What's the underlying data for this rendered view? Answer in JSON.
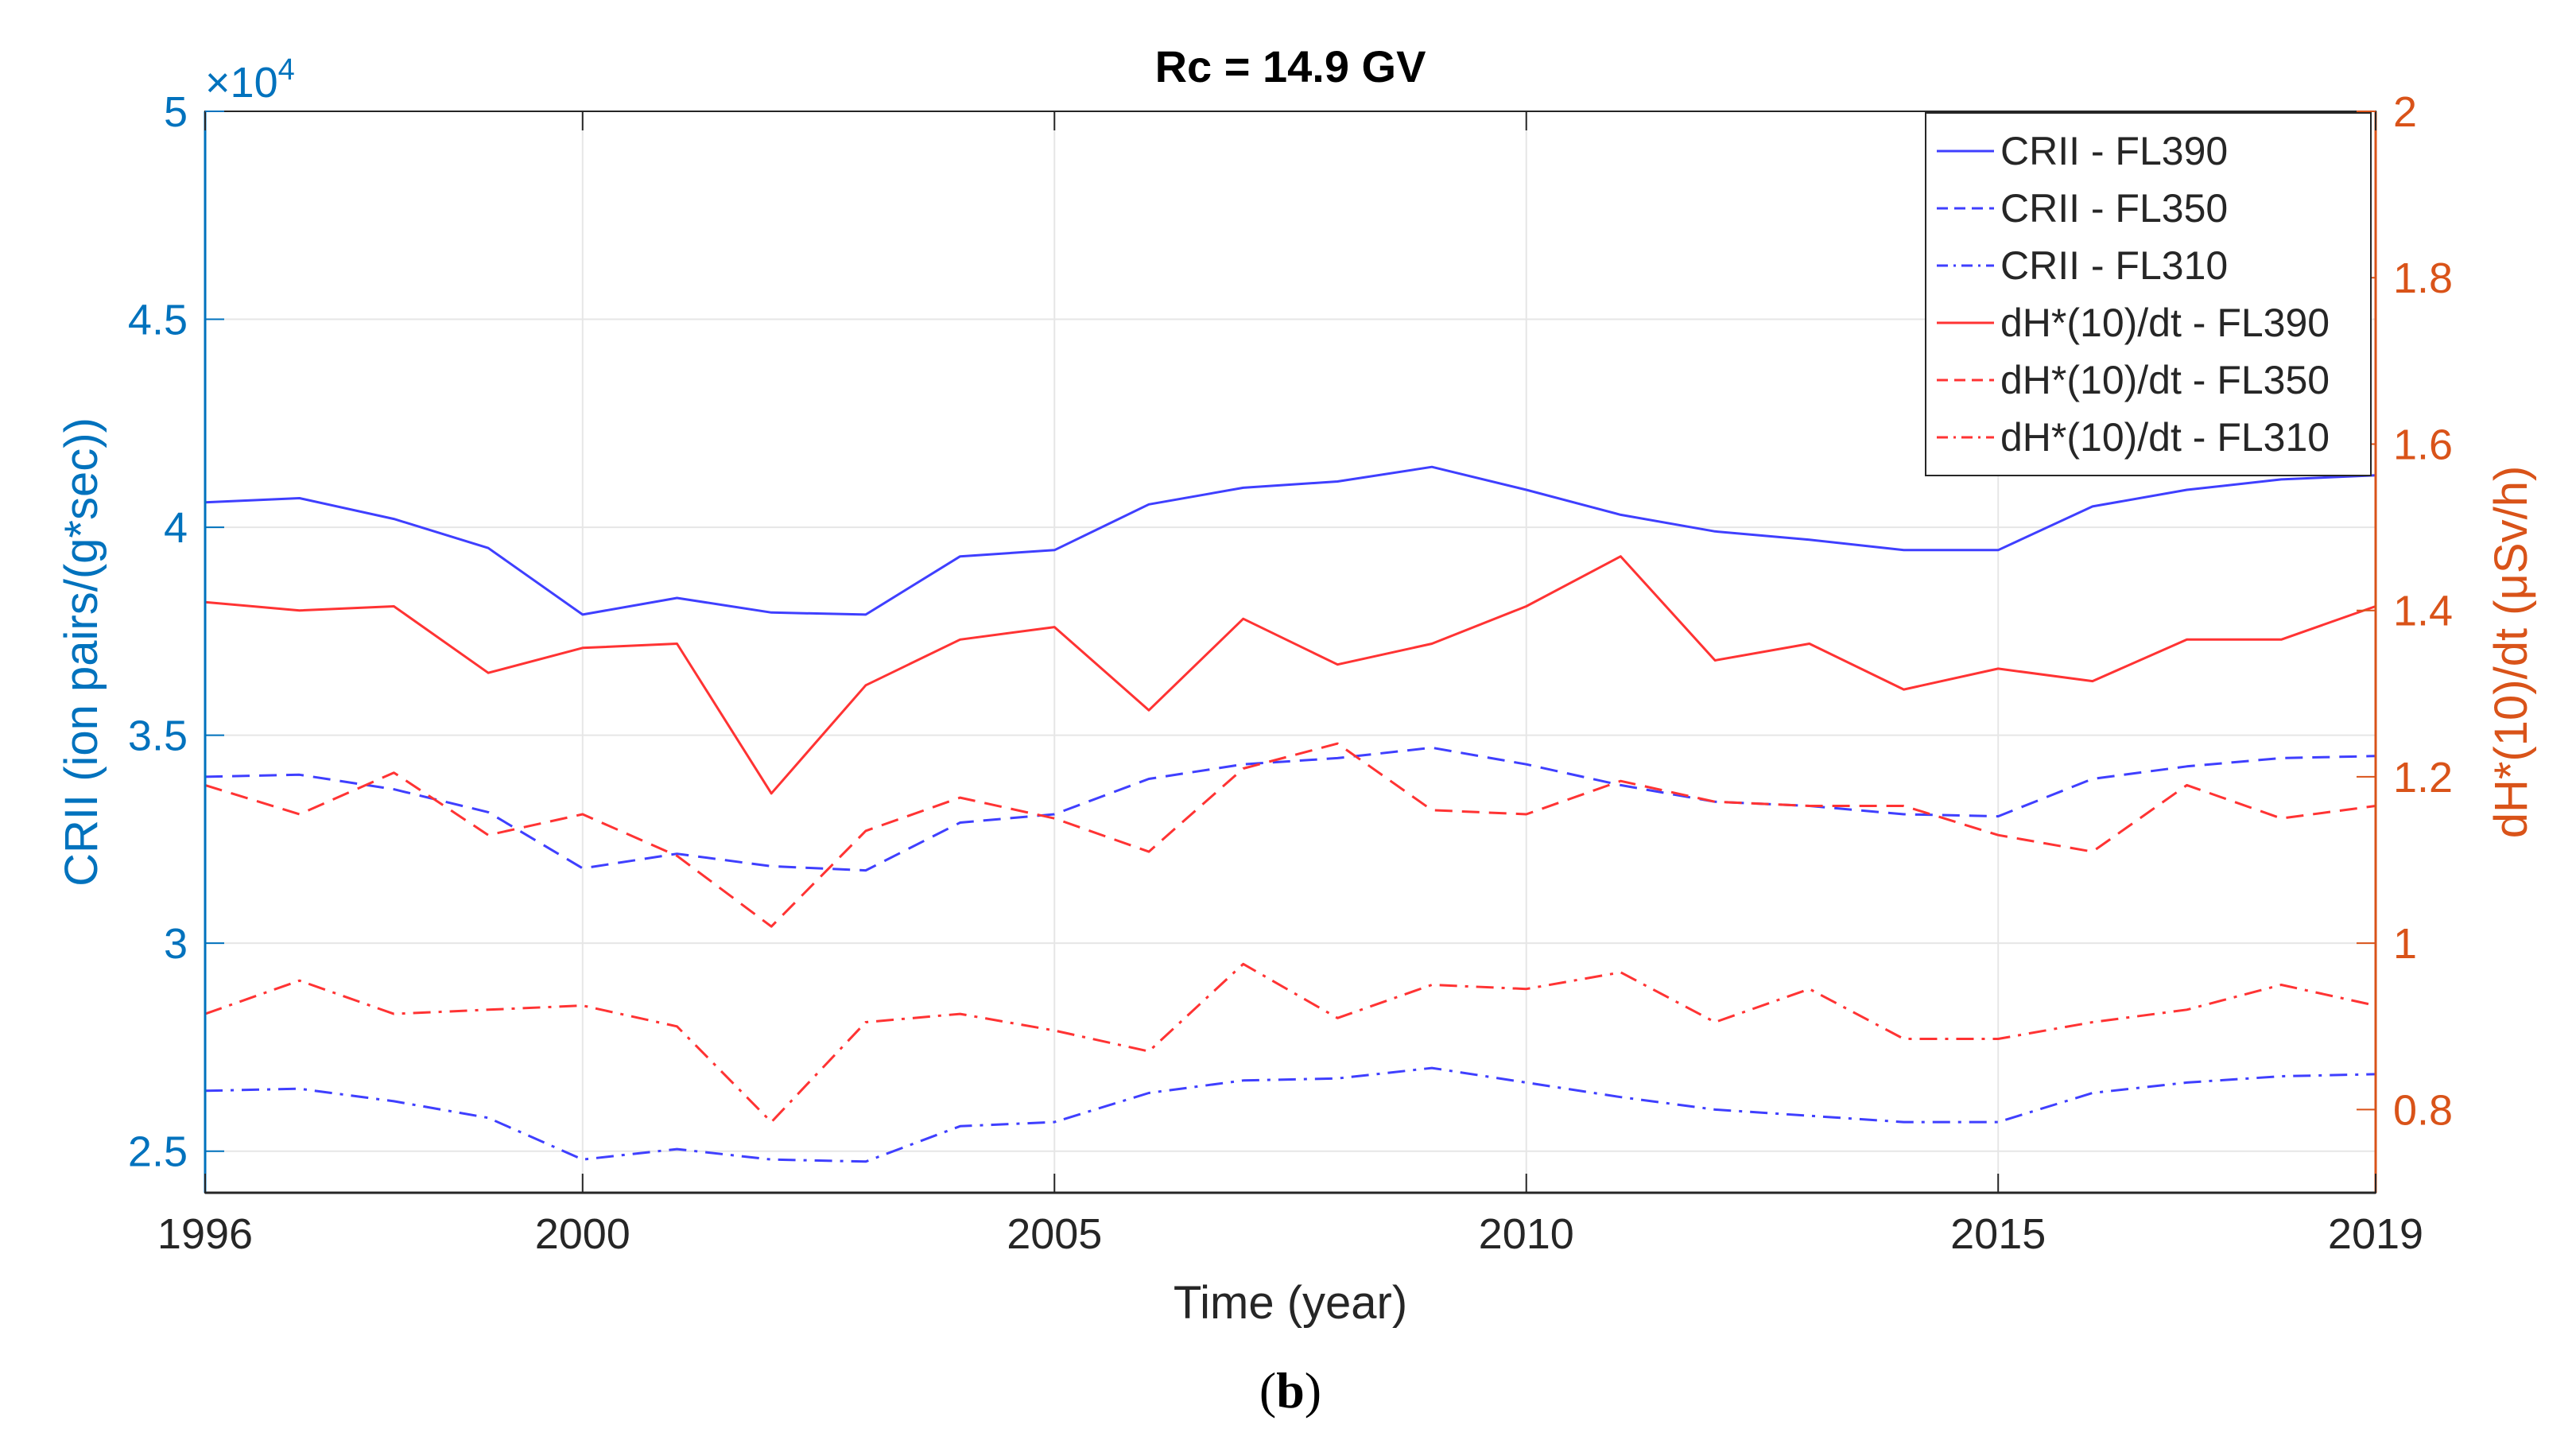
{
  "chart_data": {
    "type": "line",
    "title": "Rc = 14.9 GV",
    "xlabel": "Time (year)",
    "ylabel_left": "CRII (ion pairs/(g*sec))",
    "ylabel_right": "dH*(10)/dt (μSv/h)",
    "left_multiplier": "×10",
    "left_multiplier_exp": "4",
    "caption_open": "(",
    "caption_letter": "b",
    "caption_close": ")",
    "xlim": [
      1996,
      2019
    ],
    "ylim_left": [
      24000,
      50000
    ],
    "ylim_right": [
      0.7,
      2.0
    ],
    "grid": true,
    "legend_position": "top-right",
    "colors": {
      "left_axis": "#0072BD",
      "right_axis": "#D95319",
      "crii": "#3F3FFF",
      "dose": "#FF3333"
    },
    "x_ticks": [
      1996,
      2000,
      2005,
      2010,
      2015,
      2019
    ],
    "y_ticks_left": [
      {
        "value": 25000,
        "label": "2.5"
      },
      {
        "value": 30000,
        "label": "3"
      },
      {
        "value": 35000,
        "label": "3.5"
      },
      {
        "value": 40000,
        "label": "4"
      },
      {
        "value": 45000,
        "label": "4.5"
      },
      {
        "value": 50000,
        "label": "5"
      }
    ],
    "y_ticks_right": [
      {
        "value": 0.8,
        "label": "0.8"
      },
      {
        "value": 1.0,
        "label": "1"
      },
      {
        "value": 1.2,
        "label": "1.2"
      },
      {
        "value": 1.4,
        "label": "1.4"
      },
      {
        "value": 1.6,
        "label": "1.6"
      },
      {
        "value": 1.8,
        "label": "1.8"
      },
      {
        "value": 2.0,
        "label": "2"
      }
    ],
    "x": [
      1996,
      1997,
      1998,
      1999,
      2000,
      2001,
      2002,
      2003,
      2004,
      2005,
      2006,
      2007,
      2008,
      2009,
      2010,
      2011,
      2012,
      2013,
      2014,
      2015,
      2016,
      2017,
      2018,
      2019
    ],
    "series": [
      {
        "name": "CRII - FL390",
        "axis": "left",
        "color": "#3F3FFF",
        "dash": "solid",
        "values": [
          40600,
          40700,
          40200,
          39500,
          37900,
          38300,
          37950,
          37900,
          39300,
          39450,
          40550,
          40950,
          41100,
          41450,
          40900,
          40300,
          39900,
          39700,
          39450,
          39450,
          40500,
          40900,
          41150,
          41250
        ]
      },
      {
        "name": "CRII - FL350",
        "axis": "left",
        "color": "#3F3FFF",
        "dash": "dashed",
        "values": [
          34000,
          34050,
          33700,
          33150,
          31800,
          32150,
          31850,
          31750,
          32900,
          33100,
          33950,
          34300,
          34450,
          34700,
          34300,
          33800,
          33400,
          33300,
          33100,
          33050,
          33950,
          34250,
          34450,
          34500
        ]
      },
      {
        "name": "CRII - FL310",
        "axis": "left",
        "color": "#3F3FFF",
        "dash": "dashdot",
        "values": [
          26450,
          26500,
          26200,
          25800,
          24800,
          25050,
          24800,
          24750,
          25600,
          25700,
          26400,
          26700,
          26750,
          27000,
          26650,
          26300,
          26000,
          25850,
          25700,
          25700,
          26400,
          26650,
          26800,
          26850
        ]
      },
      {
        "name": "dH*(10)/dt - FL390",
        "axis": "right",
        "color": "#FF3333",
        "dash": "solid",
        "values": [
          1.41,
          1.4,
          1.405,
          1.325,
          1.355,
          1.36,
          1.18,
          1.31,
          1.365,
          1.38,
          1.28,
          1.39,
          1.335,
          1.36,
          1.405,
          1.465,
          1.34,
          1.36,
          1.305,
          1.33,
          1.315,
          1.365,
          1.365,
          1.405
        ]
      },
      {
        "name": "dH*(10)/dt - FL350",
        "axis": "right",
        "color": "#FF3333",
        "dash": "dashed",
        "values": [
          1.19,
          1.155,
          1.205,
          1.13,
          1.155,
          1.105,
          1.02,
          1.135,
          1.175,
          1.15,
          1.11,
          1.21,
          1.24,
          1.16,
          1.155,
          1.195,
          1.17,
          1.165,
          1.165,
          1.13,
          1.11,
          1.19,
          1.15,
          1.165
        ]
      },
      {
        "name": "dH*(10)/dt - FL310",
        "axis": "right",
        "color": "#FF3333",
        "dash": "dashdot",
        "values": [
          0.915,
          0.955,
          0.915,
          0.92,
          0.925,
          0.9,
          0.785,
          0.905,
          0.915,
          0.895,
          0.87,
          0.975,
          0.91,
          0.95,
          0.945,
          0.965,
          0.905,
          0.945,
          0.885,
          0.885,
          0.905,
          0.92,
          0.95,
          0.925
        ]
      }
    ]
  }
}
